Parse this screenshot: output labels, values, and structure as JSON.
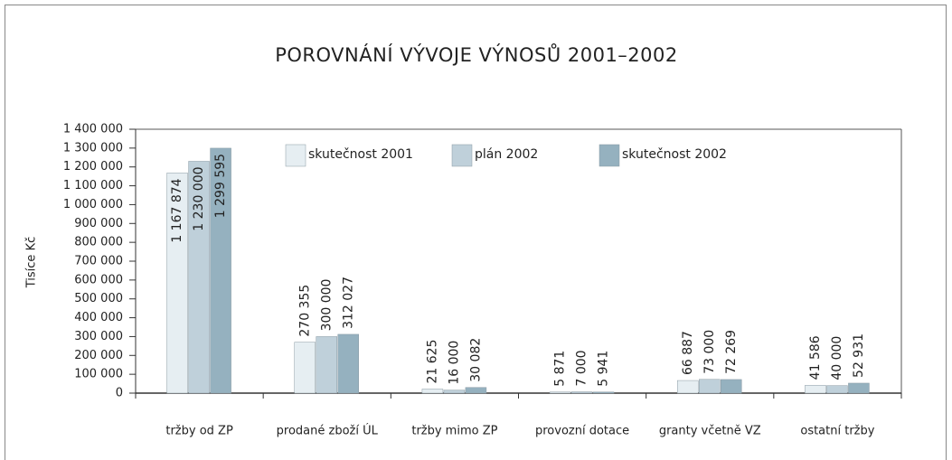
{
  "chart_data": {
    "type": "bar",
    "title": "POROVNÁNÍ VÝVOJE VÝNOSŮ 2001–2002",
    "y_label": "Tisíce Kč",
    "categories": [
      "tržby od ZP",
      "prodané zboží ÚL",
      "tržby mimo ZP",
      "provozní dotace",
      "granty včetně VZ",
      "ostatní tržby"
    ],
    "series": [
      {
        "name": "skutečnost 2001",
        "color": "#e6eef2",
        "values": [
          1167874,
          270355,
          21625,
          5871,
          66887,
          41586
        ],
        "value_labels": [
          "1 167 874",
          "270 355",
          "21 625",
          "5 871",
          "66 887",
          "41 586"
        ]
      },
      {
        "name": "plán 2002",
        "color": "#bfd0da",
        "values": [
          1230000,
          300000,
          16000,
          7000,
          73000,
          40000
        ],
        "value_labels": [
          "1 230 000",
          "300 000",
          "16 000",
          "7 000",
          "73 000",
          "40 000"
        ]
      },
      {
        "name": "skutečnost 2002",
        "color": "#95b1bf",
        "values": [
          1299595,
          312027,
          30082,
          5941,
          72269,
          52931
        ],
        "value_labels": [
          "1 299 595",
          "312 027",
          "30 082",
          "5 941",
          "72 269",
          "52 931"
        ]
      }
    ],
    "ylim": [
      0,
      1400000
    ],
    "yticks": [
      0,
      {
        "value": 100000,
        "label": "100 000"
      },
      {
        "value": 200000,
        "label": "200 000"
      },
      {
        "value": 300000,
        "label": "300 000"
      },
      {
        "value": 400000,
        "label": "400 000"
      },
      {
        "value": 500000,
        "label": "500 000"
      },
      {
        "value": 600000,
        "label": "600 000"
      },
      {
        "value": 700000,
        "label": "700 000"
      },
      {
        "value": 800000,
        "label": "800 000"
      },
      {
        "value": 900000,
        "label": "900 000"
      },
      {
        "value": 1000000,
        "label": "1 000 000"
      },
      {
        "value": 1100000,
        "label": "1 100 000"
      },
      {
        "value": 1200000,
        "label": "1 200 000"
      },
      {
        "value": 1300000,
        "label": "1 300 000"
      },
      {
        "value": 1400000,
        "label": "1 400 000"
      }
    ],
    "grid": false
  }
}
